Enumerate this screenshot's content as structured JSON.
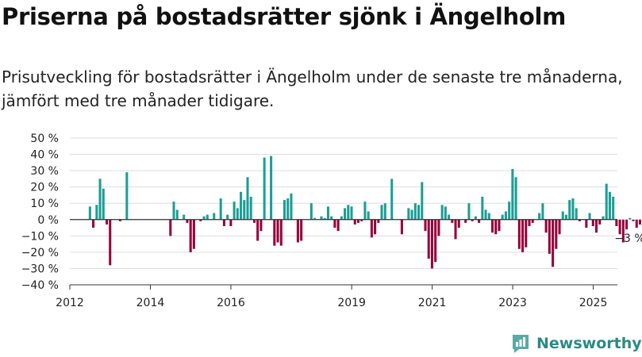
{
  "title": "Priserna på bostadsrätter sjönk i Ängelholm",
  "subtitle": "Prisutveckling för bostadsrätter i Ängelholm under de senaste tre månaderna, jämfört med tre månader tidigare.",
  "brand": {
    "name": "Newsworthy",
    "color": "#2a9d8f"
  },
  "chart_data": {
    "type": "bar",
    "title": "Priserna på bostadsrätter sjönk i Ängelholm",
    "xlabel": "",
    "ylabel": "",
    "ylim": [
      -40,
      50
    ],
    "xlim": [
      2012.0,
      2025.6
    ],
    "y_ticks": [
      50,
      40,
      30,
      20,
      10,
      0,
      -10,
      -20,
      -30,
      -40
    ],
    "y_tick_labels": [
      "50 %",
      "40 %",
      "30 %",
      "20 %",
      "10 %",
      "0 %",
      "−10 %",
      "−20 %",
      "−30 %",
      "−40 %"
    ],
    "x_ticks": [
      2012,
      2014,
      2016,
      2019,
      2021,
      2023,
      2025
    ],
    "x_tick_labels": [
      "2012",
      "2014",
      "2016",
      "2019",
      "2021",
      "2023",
      "2025"
    ],
    "grid": true,
    "colors": {
      "positive": "#1a9e96",
      "negative": "#96003b"
    },
    "annotation": {
      "text": "−3 %",
      "x": 2025.25,
      "y": -3
    },
    "x_start": 2012.5,
    "x_step": 0.0833,
    "values": [
      8,
      -5,
      9,
      25,
      19,
      -3,
      -28,
      0,
      0,
      -1,
      0,
      29,
      0,
      0,
      0,
      0,
      0,
      0,
      0,
      0,
      0,
      0,
      0,
      0,
      -10,
      11,
      6,
      0,
      3,
      -2,
      -20,
      -18,
      0,
      -1,
      2,
      3,
      0,
      4,
      0,
      13,
      -4,
      3,
      -4,
      11,
      7,
      17,
      12,
      26,
      14,
      -2,
      -13,
      -7,
      38,
      0,
      39,
      -16,
      -14,
      -16,
      12,
      13,
      16,
      0,
      -14,
      -13,
      0,
      0,
      10,
      1,
      0,
      2,
      1,
      8,
      2,
      -5,
      -7,
      2,
      7,
      9,
      8,
      -3,
      -2,
      -1,
      11,
      5,
      -11,
      -9,
      -2,
      9,
      10,
      0,
      25,
      0,
      0,
      -9,
      0,
      7,
      6,
      10,
      9,
      23,
      -7,
      -24,
      -30,
      -26,
      -10,
      9,
      8,
      3,
      -2,
      -12,
      -5,
      0,
      -2,
      10,
      -1,
      2,
      -2,
      14,
      6,
      4,
      -8,
      -9,
      -7,
      3,
      5,
      11,
      31,
      26,
      -18,
      -20,
      -17,
      -4,
      -2,
      0,
      4,
      10,
      -8,
      -21,
      -29,
      -18,
      -9,
      5,
      3,
      12,
      13,
      7,
      -1,
      0,
      -5,
      4,
      -4,
      -8,
      -3,
      2,
      22,
      17,
      14,
      -4,
      -9,
      -14,
      -6,
      1,
      -1,
      -5,
      -3,
      -3
    ]
  }
}
